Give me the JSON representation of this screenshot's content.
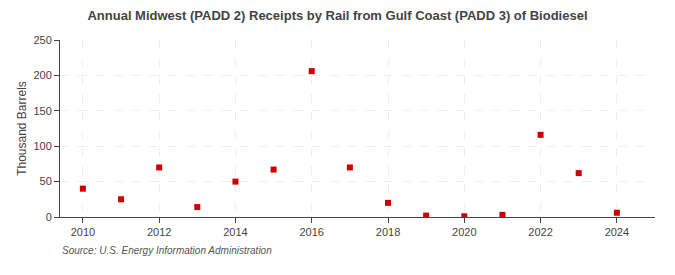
{
  "chart_data": {
    "type": "scatter",
    "title": "Annual Midwest (PADD 2) Receipts by Rail from Gulf Coast (PADD 3) of Biodiesel",
    "ylabel": "Thousand Barrels",
    "source": "Source: U.S. Energy Information Administration",
    "x": [
      2010,
      2011,
      2012,
      2013,
      2014,
      2015,
      2016,
      2017,
      2018,
      2019,
      2020,
      2021,
      2022,
      2023,
      2024
    ],
    "values": [
      40,
      25,
      70,
      14,
      50,
      67,
      206,
      70,
      20,
      2,
      1,
      3,
      116,
      62,
      6
    ],
    "color": "#cc0000",
    "marker": "square",
    "xlim": [
      2009.4,
      2025.0
    ],
    "xticks": [
      2010,
      2012,
      2014,
      2016,
      2018,
      2020,
      2022,
      2024
    ],
    "ylim": [
      0,
      250
    ],
    "yticks": [
      0,
      50,
      100,
      150,
      200,
      250
    ],
    "grid": true
  }
}
